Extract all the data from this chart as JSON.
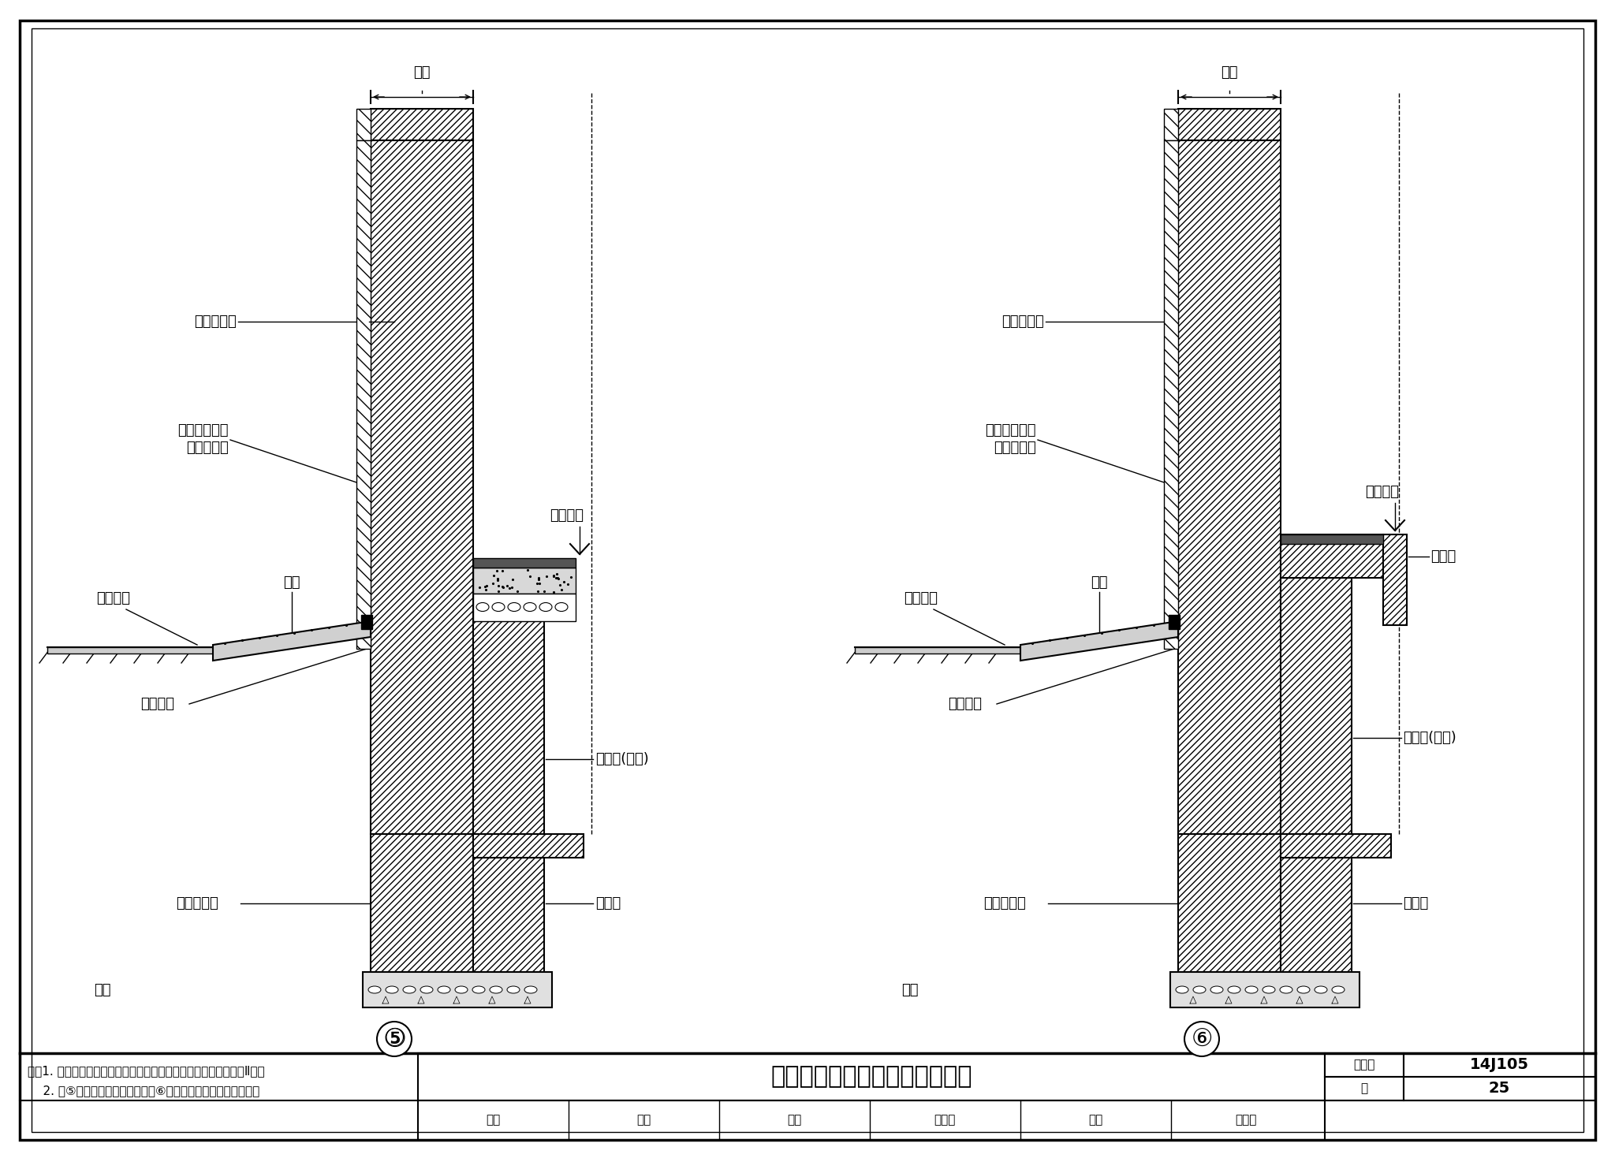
{
  "title": "自保温墙体外墙勒脚、防潮构造",
  "atlas_number": "14J105",
  "page": "25",
  "background_color": "#ffffff",
  "notes": [
    "注：1. 夏热冬冷地区、夏热冬暖地区，推荐采用页岩空心砖、砌块Ⅱ型。",
    "    2. 图⑤为墙中圈梁回填地面，图⑥为墙中框架现浇板架空地面。"
  ],
  "diagram5": "⑤",
  "diagram6": "⑥",
  "label_qiang_hou": "墙厚",
  "label_ye_yan_kong": "页岩空心砖",
  "label_wu_ji_bao1": "无机保温砂浆",
  "label_wu_ji_bao2": "按工程设计",
  "label_shi_nei": "室内地面",
  "label_shi_wai": "室外地面",
  "label_san_shui": "散水",
  "label_you_gao": "油膏嵌缝",
  "label_ye_yan_shi": "页岩实心砖",
  "label_kuang_jia": "框架柱(全包)",
  "label_ji_chu": "基础梁",
  "label_dian_ceng": "垫层",
  "label_zhuan_ce": "砖侧模",
  "tb_title": "自保温墙体外墙勒脚、防潮构造",
  "tb_atlas": "图集号",
  "tb_atlas_num": "14J105",
  "tb_page_label": "页",
  "tb_page_num": "25",
  "tb_reviewer": "审核",
  "tb_reviewer_name": "葛壁",
  "tb_checker": "校对",
  "tb_checker_name": "李文驹",
  "tb_designer": "设计",
  "tb_designer_name": "金建明"
}
